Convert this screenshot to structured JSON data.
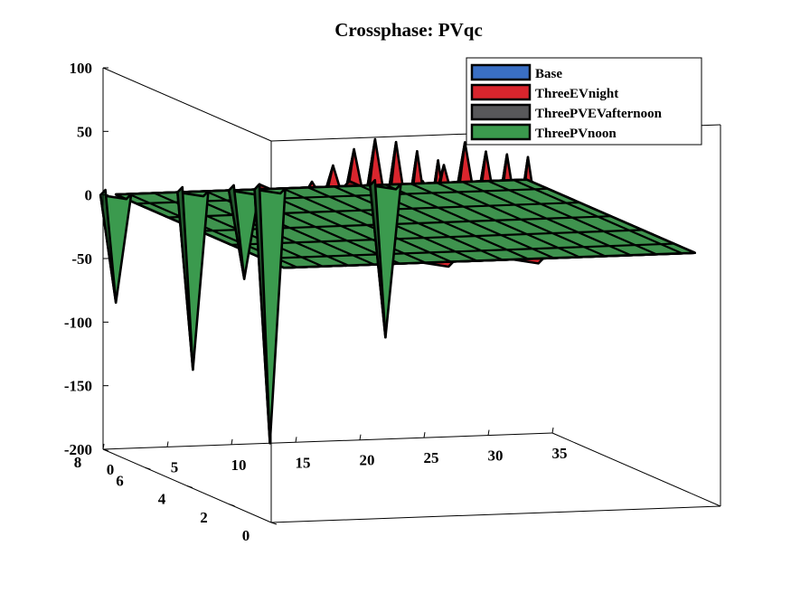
{
  "chart_data": {
    "type": "surface3d",
    "title": "Crossphase: PVqc",
    "xlabel": "",
    "ylabel": "",
    "zlabel": "",
    "xlim": [
      0,
      35
    ],
    "ylim": [
      0,
      8
    ],
    "zlim": [
      -200,
      100
    ],
    "x_ticks": [
      "0",
      "5",
      "10",
      "15",
      "20",
      "25",
      "30",
      "35"
    ],
    "y_ticks": [
      "0",
      "2",
      "4",
      "6",
      "8"
    ],
    "z_ticks": [
      "100",
      "50",
      "0",
      "-50",
      "-100",
      "-150",
      "-200"
    ],
    "x_tick_values": [
      0,
      5,
      10,
      15,
      20,
      25,
      30,
      35
    ],
    "y_tick_values": [
      0,
      2,
      4,
      6,
      8
    ],
    "z_tick_values": [
      100,
      50,
      0,
      -50,
      -100,
      -150,
      -200
    ],
    "grid": false,
    "legend_position": "top-right",
    "series": [
      {
        "name": "Base",
        "color": "#3a6fc4",
        "base": 0,
        "features": [
          {
            "x": 13,
            "y": 8,
            "z": -8
          }
        ]
      },
      {
        "name": "ThreeEVnight",
        "color": "#d9252d",
        "base": 0,
        "features": [
          {
            "x": 13,
            "y": 0,
            "z": 80
          },
          {
            "x": 13,
            "y": 1,
            "z": 80
          },
          {
            "x": 13,
            "y": 2,
            "z": 80
          },
          {
            "x": 13,
            "y": 3,
            "z": 75
          },
          {
            "x": 13,
            "y": 4,
            "z": 60
          },
          {
            "x": 13,
            "y": 5,
            "z": 40
          },
          {
            "x": 13,
            "y": 6,
            "z": 20
          },
          {
            "x": 13,
            "y": 7,
            "z": 5
          },
          {
            "x": 13,
            "y": 8,
            "z": 0
          }
        ]
      },
      {
        "name": "ThreeEVnight",
        "color": "#d9252d",
        "base": 0,
        "features": [
          {
            "x": 20,
            "y": 0,
            "z": 80
          },
          {
            "x": 20,
            "y": 1,
            "z": 75
          },
          {
            "x": 20,
            "y": 2,
            "z": 70
          },
          {
            "x": 20,
            "y": 3,
            "z": 70
          },
          {
            "x": 20,
            "y": 4,
            "z": 45
          },
          {
            "x": 20,
            "y": 5,
            "z": 25
          },
          {
            "x": 20,
            "y": 6,
            "z": 10
          },
          {
            "x": 20,
            "y": 7,
            "z": 5
          },
          {
            "x": 20,
            "y": 8,
            "z": 0
          }
        ]
      },
      {
        "name": "ThreePVEVafternoon",
        "color": "#58585a",
        "base": 0,
        "features": [
          {
            "x": 13,
            "y": 8,
            "z": -120
          }
        ]
      },
      {
        "name": "ThreePVnoon",
        "color": "#3b9a4e",
        "base": 0,
        "features": [
          {
            "x": 1,
            "y": 8,
            "z": -85
          },
          {
            "x": 7,
            "y": 8,
            "z": -140
          },
          {
            "x": 11,
            "y": 8,
            "z": -70
          },
          {
            "x": 13,
            "y": 8,
            "z": -200
          },
          {
            "x": 22,
            "y": 8,
            "z": -120
          }
        ]
      }
    ]
  }
}
